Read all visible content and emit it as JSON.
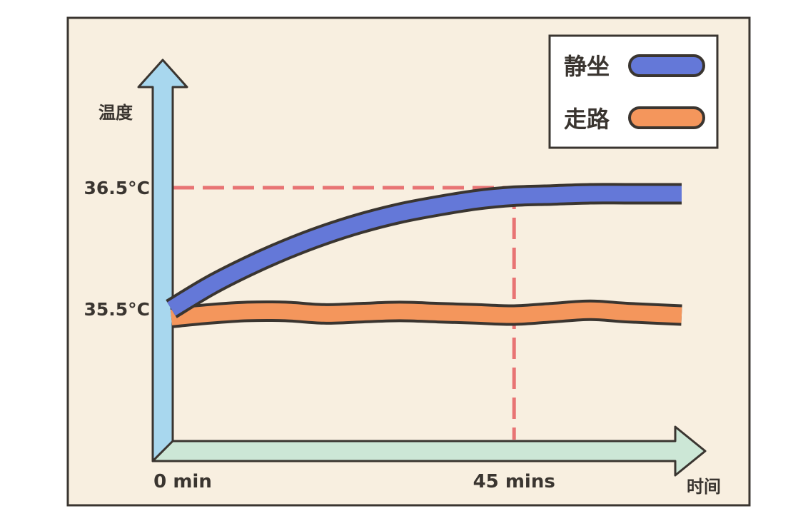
{
  "chart_data": {
    "type": "line",
    "ylabel": "温度",
    "xlabel": "时间",
    "x_ticks": [
      {
        "value": 0,
        "label": "0 min"
      },
      {
        "value": 45,
        "label": "45 mins"
      }
    ],
    "y_ticks": [
      {
        "value": 35.5,
        "label": "35.5°C"
      },
      {
        "value": 36.5,
        "label": "36.5°C"
      }
    ],
    "xlim": [
      0,
      67
    ],
    "ylim": [
      34.4,
      37.4
    ],
    "reference_lines": [
      {
        "axis": "y",
        "value": 36.5,
        "color": "#e87474",
        "style": "dashed"
      },
      {
        "axis": "x",
        "value": 45,
        "color": "#e87474",
        "style": "dashed"
      }
    ],
    "legend_position": "top-right",
    "series": [
      {
        "name": "静坐",
        "color": "#6478d8",
        "x": [
          0,
          5,
          10,
          15,
          20,
          25,
          30,
          35,
          40,
          45,
          50,
          55,
          60,
          67
        ],
        "y": [
          35.5,
          35.69,
          35.85,
          35.99,
          36.11,
          36.21,
          36.29,
          36.35,
          36.4,
          36.43,
          36.44,
          36.45,
          36.45,
          36.45
        ]
      },
      {
        "name": "走路",
        "color": "#f4965c",
        "x": [
          0,
          5,
          10,
          15,
          20,
          25,
          30,
          35,
          40,
          45,
          50,
          55,
          60,
          67
        ],
        "y": [
          35.43,
          35.46,
          35.48,
          35.48,
          35.46,
          35.47,
          35.48,
          35.47,
          35.46,
          35.45,
          35.47,
          35.49,
          35.47,
          35.45
        ]
      }
    ]
  }
}
